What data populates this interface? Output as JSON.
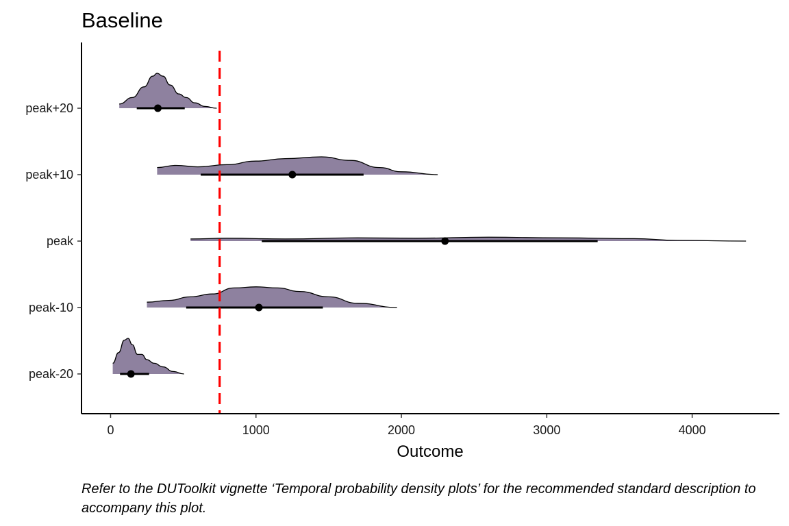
{
  "chart_data": {
    "type": "ridgeline",
    "title": "Baseline",
    "xlabel": "Outcome",
    "ylabel": "",
    "xlim": [
      -200,
      4600
    ],
    "x_ticks": [
      0,
      1000,
      2000,
      3000,
      4000
    ],
    "x_tick_labels": [
      "0",
      "1000",
      "2000",
      "3000",
      "4000"
    ],
    "fill_color": "#8e819f",
    "reference_line": {
      "x": 750,
      "color": "#ff0000",
      "style": "dashed"
    },
    "grid": false,
    "categories": [
      "peak-20",
      "peak-10",
      "peak",
      "peak+10",
      "peak+20"
    ],
    "series": [
      {
        "category": "peak+20",
        "range": [
          60,
          730
        ],
        "point": 325,
        "interval": [
          180,
          510
        ],
        "density": [
          [
            60,
            0.12
          ],
          [
            150,
            0.3
          ],
          [
            230,
            0.6
          ],
          [
            290,
            0.9
          ],
          [
            320,
            0.98
          ],
          [
            360,
            0.9
          ],
          [
            410,
            0.65
          ],
          [
            470,
            0.4
          ],
          [
            520,
            0.3
          ],
          [
            580,
            0.15
          ],
          [
            650,
            0.05
          ],
          [
            730,
            0
          ]
        ]
      },
      {
        "category": "peak+10",
        "range": [
          320,
          2250
        ],
        "point": 1250,
        "interval": [
          620,
          1740
        ],
        "density": [
          [
            320,
            0.2
          ],
          [
            450,
            0.26
          ],
          [
            600,
            0.22
          ],
          [
            800,
            0.28
          ],
          [
            1000,
            0.38
          ],
          [
            1200,
            0.45
          ],
          [
            1450,
            0.5
          ],
          [
            1650,
            0.4
          ],
          [
            1850,
            0.2
          ],
          [
            2000,
            0.08
          ],
          [
            2250,
            0
          ]
        ]
      },
      {
        "category": "peak",
        "range": [
          550,
          4370
        ],
        "point": 2300,
        "interval": [
          1040,
          3350
        ],
        "density": [
          [
            550,
            0.06
          ],
          [
            800,
            0.08
          ],
          [
            1200,
            0.06
          ],
          [
            1700,
            0.09
          ],
          [
            2100,
            0.08
          ],
          [
            2600,
            0.11
          ],
          [
            3100,
            0.09
          ],
          [
            3600,
            0.07
          ],
          [
            3900,
            0.02
          ],
          [
            4370,
            0
          ]
        ]
      },
      {
        "category": "peak-10",
        "range": [
          250,
          1970
        ],
        "point": 1020,
        "interval": [
          520,
          1460
        ],
        "density": [
          [
            250,
            0.15
          ],
          [
            400,
            0.2
          ],
          [
            550,
            0.3
          ],
          [
            700,
            0.38
          ],
          [
            850,
            0.55
          ],
          [
            1000,
            0.58
          ],
          [
            1150,
            0.55
          ],
          [
            1300,
            0.45
          ],
          [
            1500,
            0.3
          ],
          [
            1700,
            0.12
          ],
          [
            1970,
            0
          ]
        ]
      },
      {
        "category": "peak-20",
        "range": [
          15,
          505
        ],
        "point": 140,
        "interval": [
          65,
          265
        ],
        "density": [
          [
            15,
            0.3
          ],
          [
            55,
            0.6
          ],
          [
            95,
            0.95
          ],
          [
            120,
            1.0
          ],
          [
            150,
            0.82
          ],
          [
            185,
            0.55
          ],
          [
            215,
            0.55
          ],
          [
            250,
            0.4
          ],
          [
            300,
            0.3
          ],
          [
            360,
            0.2
          ],
          [
            430,
            0.07
          ],
          [
            505,
            0
          ]
        ]
      }
    ]
  },
  "caption": "Refer to the DUToolkit vignette ‘Temporal probability density plots’ for the recommended standard description to accompany this plot."
}
